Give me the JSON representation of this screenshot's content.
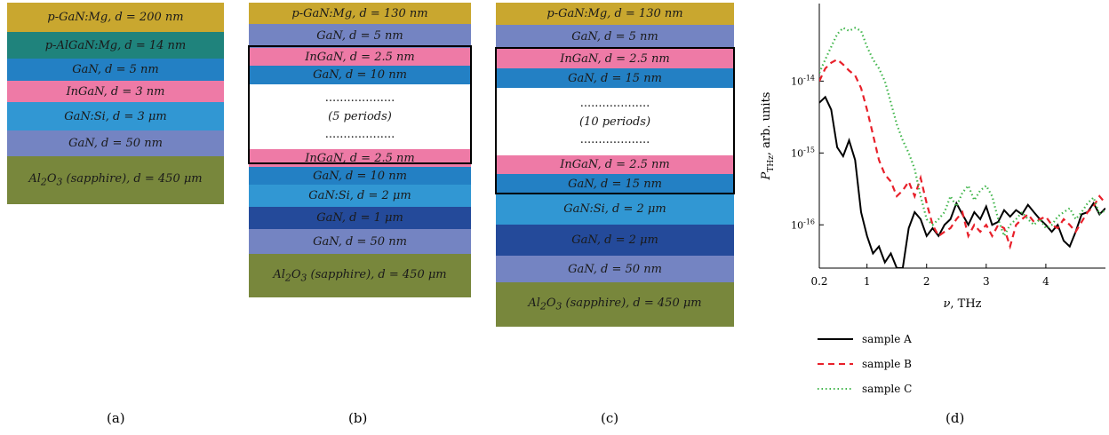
{
  "panels": [
    {
      "caption": "(a)",
      "layers": [
        {
          "text": "p-GaN:Mg, d = 200 nm",
          "color": "#c9a72f"
        },
        {
          "text": "p-AlGaN:Mg, d = 14 nm",
          "color": "#1f837c"
        },
        {
          "text": "GaN, d = 5 nm",
          "color": "#2380c4"
        },
        {
          "text": "InGaN, d = 3 nm",
          "color": "#ee7aa6"
        },
        {
          "text": "GaN:Si, d = 3 μm",
          "color": "#3197d3"
        },
        {
          "text": "GaN, d = 50 nm",
          "color": "#7484c2"
        },
        {
          "text": "Al2O3 (sapphire), d = 450 μm",
          "color": "#78873c"
        }
      ]
    },
    {
      "caption": "(b)",
      "layers": [
        {
          "text": "p-GaN:Mg, d = 130 nm",
          "color": "#c9a72f"
        },
        {
          "text": "GaN, d = 5 nm",
          "color": "#7484c2"
        },
        {
          "text": "InGaN, d = 2.5 nm",
          "color": "#ee7aa6"
        },
        {
          "text": "GaN, d = 10 nm",
          "color": "#2380c4"
        },
        {
          "text": "(5 periods)",
          "color": "#ffffff"
        },
        {
          "text": "InGaN, d = 2.5 nm",
          "color": "#ee7aa6"
        },
        {
          "text": "GaN, d = 10 nm",
          "color": "#2380c4"
        },
        {
          "text": "GaN:Si, d = 2 μm",
          "color": "#3197d3"
        },
        {
          "text": "GaN, d = 1 μm",
          "color": "#244a9a"
        },
        {
          "text": "GaN, d = 50 nm",
          "color": "#7484c2"
        },
        {
          "text": "Al2O3 (sapphire), d = 450 μm",
          "color": "#78873c"
        }
      ]
    },
    {
      "caption": "(c)",
      "layers": [
        {
          "text": "p-GaN:Mg, d = 130 nm",
          "color": "#c9a72f"
        },
        {
          "text": "GaN, d = 5 nm",
          "color": "#7484c2"
        },
        {
          "text": "InGaN, d = 2.5 nm",
          "color": "#ee7aa6"
        },
        {
          "text": "GaN, d = 15 nm",
          "color": "#2380c4"
        },
        {
          "text": "(10 periods)",
          "color": "#ffffff"
        },
        {
          "text": "InGaN, d = 2.5 nm",
          "color": "#ee7aa6"
        },
        {
          "text": "GaN, d = 15 nm",
          "color": "#2380c4"
        },
        {
          "text": "GaN:Si, d = 2 μm",
          "color": "#3197d3"
        },
        {
          "text": "GaN, d = 2 μm",
          "color": "#244a9a"
        },
        {
          "text": "GaN, d = 50 nm",
          "color": "#7484c2"
        },
        {
          "text": "Al2O3 (sapphire), d = 450 μm",
          "color": "#78873c"
        }
      ]
    }
  ],
  "chart_caption": "(d)",
  "chart_data": {
    "type": "line",
    "log_y": true,
    "xlabel": "ν, THz",
    "ylabel": "P_THz, arb. units",
    "xlim": [
      0.2,
      5.0
    ],
    "ylim": [
      2.5e-17,
      1.2e-13
    ],
    "x_ticks": [
      "0.2",
      "1",
      "2",
      "3",
      "4"
    ],
    "x_tick_values": [
      0.2,
      1,
      2,
      3,
      4
    ],
    "y_ticks": [
      "10^-14",
      "10^-15",
      "10^-16"
    ],
    "y_tick_values": [
      1e-14,
      1e-15,
      1e-16
    ],
    "series": [
      {
        "name": "sample A",
        "color": "#000000",
        "dash": "solid",
        "x": [
          0.2,
          0.3,
          0.4,
          0.5,
          0.6,
          0.7,
          0.8,
          0.9,
          1.0,
          1.1,
          1.2,
          1.3,
          1.4,
          1.5,
          1.6,
          1.7,
          1.8,
          1.9,
          2.0,
          2.1,
          2.2,
          2.3,
          2.4,
          2.5,
          2.6,
          2.7,
          2.8,
          2.9,
          3.0,
          3.1,
          3.2,
          3.3,
          3.4,
          3.5,
          3.6,
          3.7,
          3.8,
          3.9,
          4.0,
          4.1,
          4.2,
          4.3,
          4.4,
          4.5,
          4.6,
          4.7,
          4.8,
          4.9,
          5.0
        ],
        "y": [
          5e-15,
          6e-15,
          4e-15,
          1.2e-15,
          9e-16,
          1.5e-15,
          8e-16,
          1.5e-16,
          7e-17,
          4e-17,
          5e-17,
          3e-17,
          4e-17,
          2.5e-17,
          2.5e-17,
          9e-17,
          1.5e-16,
          1.2e-16,
          7e-17,
          9e-17,
          7e-17,
          1e-16,
          1.2e-16,
          2e-16,
          1.4e-16,
          1e-16,
          1.5e-16,
          1.2e-16,
          1.8e-16,
          1e-16,
          1.1e-16,
          1.6e-16,
          1.3e-16,
          1.6e-16,
          1.4e-16,
          1.9e-16,
          1.5e-16,
          1.2e-16,
          1e-16,
          8e-17,
          1e-16,
          6e-17,
          5e-17,
          8e-17,
          1.4e-16,
          1.5e-16,
          2e-16,
          1.4e-16,
          1.7e-16
        ]
      },
      {
        "name": "sample B",
        "color": "#e8202a",
        "dash": "dashed",
        "x": [
          0.2,
          0.3,
          0.4,
          0.5,
          0.6,
          0.7,
          0.8,
          0.9,
          1.0,
          1.1,
          1.2,
          1.3,
          1.4,
          1.5,
          1.6,
          1.7,
          1.8,
          1.9,
          2.0,
          2.1,
          2.2,
          2.3,
          2.4,
          2.5,
          2.6,
          2.7,
          2.8,
          2.9,
          3.0,
          3.1,
          3.2,
          3.3,
          3.4,
          3.5,
          3.6,
          3.7,
          3.8,
          3.9,
          4.0,
          4.1,
          4.2,
          4.3,
          4.4,
          4.5,
          4.6,
          4.7,
          4.8,
          4.9,
          5.0
        ],
        "y": [
          1e-14,
          1.5e-14,
          1.8e-14,
          2e-14,
          1.7e-14,
          1.4e-14,
          1.2e-14,
          8e-15,
          4e-15,
          1.8e-15,
          8e-16,
          5e-16,
          4e-16,
          2.5e-16,
          3e-16,
          4e-16,
          2.5e-16,
          4.5e-16,
          2e-16,
          1e-16,
          7e-17,
          8e-17,
          9e-17,
          1.2e-16,
          1.5e-16,
          7e-17,
          1e-16,
          8e-17,
          1e-16,
          7e-17,
          1e-16,
          9e-17,
          5e-17,
          1e-16,
          1.2e-16,
          1.4e-16,
          1.1e-16,
          1.2e-16,
          1.3e-16,
          1e-16,
          9e-17,
          1.2e-16,
          1e-16,
          8e-17,
          1.1e-16,
          1.5e-16,
          1.8e-16,
          2.5e-16,
          2e-16
        ]
      },
      {
        "name": "sample C",
        "color": "#3fb54a",
        "dash": "dotted",
        "x": [
          0.2,
          0.3,
          0.4,
          0.5,
          0.6,
          0.7,
          0.8,
          0.9,
          1.0,
          1.1,
          1.2,
          1.3,
          1.4,
          1.5,
          1.6,
          1.7,
          1.8,
          1.9,
          2.0,
          2.1,
          2.2,
          2.3,
          2.4,
          2.5,
          2.6,
          2.7,
          2.8,
          2.9,
          3.0,
          3.1,
          3.2,
          3.3,
          3.4,
          3.5,
          3.6,
          3.7,
          3.8,
          3.9,
          4.0,
          4.1,
          4.2,
          4.3,
          4.4,
          4.5,
          4.6,
          4.7,
          4.8,
          4.9,
          5.0
        ],
        "y": [
          1.3e-14,
          2e-14,
          3e-14,
          4.5e-14,
          5.5e-14,
          5e-14,
          5.5e-14,
          5e-14,
          3e-14,
          2e-14,
          1.5e-14,
          1e-14,
          5e-15,
          2.5e-15,
          1.5e-15,
          1e-15,
          6e-16,
          2.5e-16,
          1.2e-16,
          1e-16,
          1.2e-16,
          1.5e-16,
          2.5e-16,
          1.8e-16,
          2.8e-16,
          3.5e-16,
          2.2e-16,
          3e-16,
          3.5e-16,
          2.5e-16,
          1.2e-16,
          7e-17,
          1e-16,
          1.2e-16,
          1.5e-16,
          1.2e-16,
          1e-16,
          1.2e-16,
          9e-17,
          1e-16,
          1.3e-16,
          1.5e-16,
          1.7e-16,
          1.2e-16,
          1.5e-16,
          2e-16,
          2.4e-16,
          1.4e-16,
          1.6e-16
        ]
      }
    ],
    "legend": [
      {
        "label": "sample A",
        "color": "#000000",
        "dash": "solid"
      },
      {
        "label": "sample B",
        "color": "#e8202a",
        "dash": "dashed"
      },
      {
        "label": "sample C",
        "color": "#3fb54a",
        "dash": "dotted"
      }
    ],
    "legend_position": "below"
  }
}
